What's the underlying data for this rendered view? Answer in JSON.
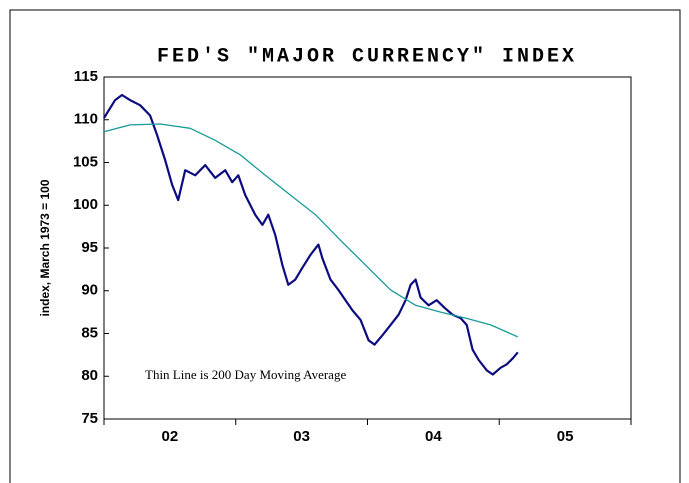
{
  "chart_data": {
    "type": "line",
    "title": "FED'S \"MAJOR CURRENCY\" INDEX",
    "y_label": "index, March 1973 = 100",
    "annotation": "Thin Line is 200 Day Moving Average",
    "xlim": [
      2002,
      2006
    ],
    "xticks": [
      2002,
      2003,
      2004,
      2005,
      2006
    ],
    "xlabels": [
      {
        "value": 2002.5,
        "label": "02"
      },
      {
        "value": 2003.5,
        "label": "03"
      },
      {
        "value": 2004.5,
        "label": "04"
      },
      {
        "value": 2005.5,
        "label": "05"
      }
    ],
    "ylim": [
      75,
      115
    ],
    "yticks": [
      75,
      80,
      85,
      90,
      95,
      100,
      105,
      110,
      115
    ],
    "series": [
      {
        "color": "#0c0c80",
        "width": 2.2,
        "x": [
          2002.0,
          2002.084,
          2002.137,
          2002.198,
          2002.274,
          2002.35,
          2002.403,
          2002.464,
          2002.517,
          2002.563,
          2002.616,
          2002.692,
          2002.768,
          2002.844,
          2002.92,
          2002.973,
          2003.019,
          2003.072,
          2003.148,
          2003.202,
          2003.247,
          2003.3,
          2003.354,
          2003.399,
          2003.452,
          2003.506,
          2003.567,
          2003.627,
          2003.658,
          2003.719,
          2003.779,
          2003.833,
          2003.886,
          2003.947,
          2004.008,
          2004.053,
          2004.114,
          2004.175,
          2004.236,
          2004.289,
          2004.327,
          2004.365,
          2004.403,
          2004.464,
          2004.525,
          2004.586,
          2004.646,
          2004.707,
          2004.753,
          2004.798,
          2004.844,
          2004.905,
          2004.951,
          2005.011,
          2005.057,
          2005.103,
          2005.141
        ],
        "values": [
          110.2,
          112.3,
          112.9,
          112.3,
          111.7,
          110.5,
          108.2,
          105.3,
          102.4,
          100.6,
          104.1,
          103.5,
          104.7,
          103.2,
          104.1,
          102.7,
          103.5,
          101.2,
          98.9,
          97.7,
          98.9,
          96.5,
          93.0,
          90.7,
          91.3,
          92.7,
          94.2,
          95.4,
          93.8,
          91.3,
          90.1,
          88.9,
          87.7,
          86.6,
          84.2,
          83.7,
          84.8,
          86.0,
          87.2,
          88.9,
          90.7,
          91.3,
          89.2,
          88.3,
          88.9,
          88.0,
          87.2,
          86.8,
          86.0,
          83.1,
          81.9,
          80.7,
          80.2,
          81.0,
          81.4,
          82.1,
          82.8
        ]
      },
      {
        "color": "#1a9a9a",
        "width": 1.3,
        "x": [
          2002.0,
          2002.198,
          2002.426,
          2002.654,
          2002.844,
          2003.034,
          2003.224,
          2003.414,
          2003.605,
          2003.795,
          2003.985,
          2004.175,
          2004.365,
          2004.555,
          2004.745,
          2004.935,
          2005.141
        ],
        "values": [
          108.6,
          109.4,
          109.5,
          109.0,
          107.6,
          105.9,
          103.5,
          101.2,
          98.9,
          95.9,
          93.0,
          90.1,
          88.3,
          87.5,
          86.8,
          86.0,
          84.6
        ]
      }
    ]
  }
}
